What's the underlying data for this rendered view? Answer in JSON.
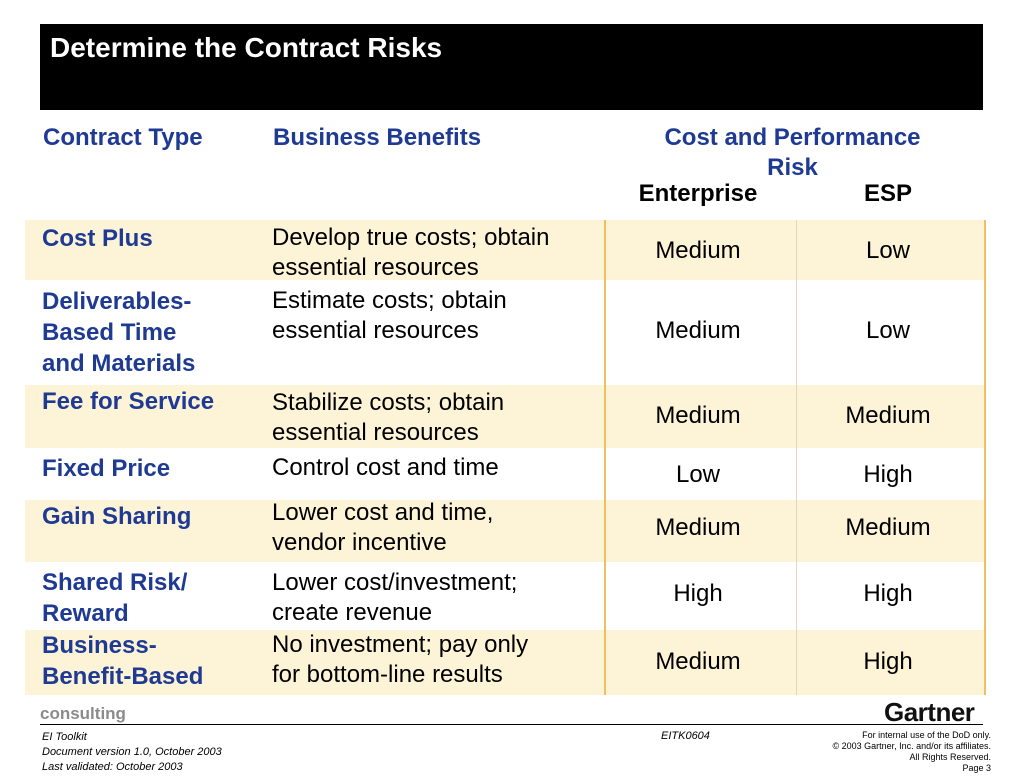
{
  "title": "Determine the Contract Risks",
  "headers": {
    "contract_type": "Contract Type",
    "business_benefits": "Business Benefits",
    "risk_line1": "Cost and Performance",
    "risk_line2": "Risk",
    "enterprise": "Enterprise",
    "esp": "ESP"
  },
  "rows": [
    {
      "type": [
        "Cost Plus"
      ],
      "benefit": [
        "Develop true costs; obtain",
        "essential resources"
      ],
      "enterprise": "Medium",
      "esp": "Low"
    },
    {
      "type": [
        "Deliverables-",
        "Based Time",
        "and Materials"
      ],
      "benefit": [
        "Estimate costs; obtain",
        "essential resources"
      ],
      "enterprise": "Medium",
      "esp": "Low"
    },
    {
      "type": [
        "Fee for Service"
      ],
      "benefit": [
        "Stabilize costs; obtain",
        "essential resources"
      ],
      "enterprise": "Medium",
      "esp": "Medium"
    },
    {
      "type": [
        "Fixed Price"
      ],
      "benefit": [
        "Control cost and time"
      ],
      "enterprise": "Low",
      "esp": "High"
    },
    {
      "type": [
        "Gain Sharing"
      ],
      "benefit": [
        "Lower cost and time,",
        "vendor incentive"
      ],
      "enterprise": "Medium",
      "esp": "Medium"
    },
    {
      "type": [
        "Shared Risk/",
        "Reward"
      ],
      "benefit": [
        "Lower cost/investment;",
        "create revenue"
      ],
      "enterprise": "High",
      "esp": "High"
    },
    {
      "type": [
        "Business-",
        "Benefit-Based"
      ],
      "benefit": [
        "No investment; pay only",
        "for bottom-line results"
      ],
      "enterprise": "Medium",
      "esp": "High"
    }
  ],
  "footer": {
    "consulting": "consulting",
    "logo": "Gartner",
    "left_lines": [
      "EI Toolkit",
      "Document version 1.0, October 2003",
      "Last validated: October 2003"
    ],
    "doc_code": "EITK0604",
    "right_lines": [
      "For internal use of the DoD only.",
      "© 2003 Gartner, Inc. and/or its affiliates.",
      "All Rights Reserved.",
      "Page 3"
    ]
  }
}
